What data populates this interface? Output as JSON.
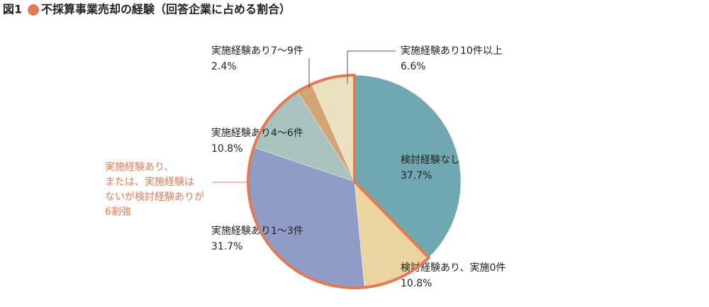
{
  "chart_data": {
    "type": "pie",
    "figure_label": "図1",
    "title": "不採算事業売却の経験（回答企業に占める割合）",
    "categories": [
      "検討経験なし",
      "検討経験あり、実施0件",
      "実施経験あり1〜3件",
      "実施経験あり4〜6件",
      "実施経験あり7〜9件",
      "実施経験あり10件以上"
    ],
    "values": [
      37.7,
      10.8,
      31.7,
      10.8,
      2.4,
      6.6
    ],
    "value_labels": [
      "37.7%",
      "10.8%",
      "31.7%",
      "10.8%",
      "2.4%",
      "6.6%"
    ],
    "colors": [
      "#6fa8b0",
      "#ecd39f",
      "#8f9dc6",
      "#a8c2bd",
      "#d4a574",
      "#ebe0bf"
    ],
    "highlight": [
      false,
      true,
      true,
      true,
      true,
      true
    ],
    "highlight_color": "#e07b55",
    "annotation": [
      "実施経験あり、",
      "または、実施経験は",
      "ないが検討経験ありが",
      "6割強"
    ]
  }
}
